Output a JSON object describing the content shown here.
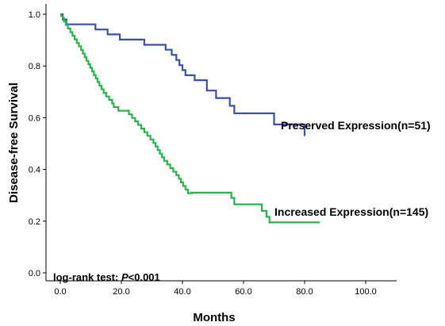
{
  "chart_data": {
    "type": "line",
    "xlabel": "Months",
    "ylabel": "Disease-free Survival",
    "xlim": [
      0,
      100
    ],
    "ylim": [
      0,
      1.0
    ],
    "x_ticks": [
      "0.0",
      "20.0",
      "40.0",
      "60.0",
      "80.0",
      "100.0"
    ],
    "y_ticks": [
      "0.0",
      "0.2",
      "0.4",
      "0.6",
      "0.8",
      "1.0"
    ],
    "grid": false,
    "annotation": {
      "prefix": "log-rank test: ",
      "italic": "P",
      "suffix": "<0.001"
    },
    "series": [
      {
        "name": "Preserved Expression(n=51)",
        "color": "#3c50a6",
        "step": true,
        "x": [
          0,
          0.8,
          2,
          11.5,
          15.5,
          19.5,
          27.5,
          34.5,
          36.5,
          38,
          39,
          40,
          41,
          44,
          48,
          51,
          55.5,
          57,
          70,
          80
        ],
        "y": [
          1.0,
          0.98,
          0.961,
          0.941,
          0.922,
          0.902,
          0.882,
          0.863,
          0.843,
          0.823,
          0.803,
          0.784,
          0.764,
          0.745,
          0.705,
          0.676,
          0.646,
          0.617,
          0.574,
          0.529
        ]
      },
      {
        "name": "Increased Expression(n=145)",
        "color": "#2bb24c",
        "step": true,
        "x": [
          0,
          0.3,
          0.8,
          1.2,
          1.8,
          2.5,
          3.3,
          4.0,
          4.7,
          5.4,
          6.1,
          6.8,
          7.4,
          8.0,
          8.6,
          9.2,
          9.8,
          10.4,
          11.0,
          11.6,
          12.2,
          12.8,
          13.5,
          14.2,
          15.0,
          16.0,
          17.0,
          17.5,
          19.0,
          22.5,
          23.5,
          24.5,
          25.5,
          26.5,
          27.5,
          28.5,
          29.5,
          30.5,
          31.2,
          31.9,
          32.6,
          33.3,
          34.0,
          35.0,
          36.0,
          37.0,
          38.0,
          38.8,
          39.5,
          40.2,
          41.0,
          41.8,
          43.0,
          56.0,
          57.0,
          58.5,
          66.0,
          67.5,
          68.5,
          85.0
        ],
        "y": [
          1.0,
          0.993,
          0.986,
          0.972,
          0.959,
          0.945,
          0.931,
          0.917,
          0.903,
          0.889,
          0.876,
          0.862,
          0.848,
          0.834,
          0.82,
          0.807,
          0.793,
          0.779,
          0.765,
          0.752,
          0.738,
          0.724,
          0.71,
          0.696,
          0.682,
          0.669,
          0.655,
          0.641,
          0.627,
          0.613,
          0.599,
          0.586,
          0.572,
          0.558,
          0.544,
          0.53,
          0.516,
          0.502,
          0.489,
          0.475,
          0.461,
          0.447,
          0.433,
          0.419,
          0.405,
          0.391,
          0.378,
          0.364,
          0.35,
          0.336,
          0.322,
          0.308,
          0.31,
          0.29,
          0.265,
          0.265,
          0.24,
          0.217,
          0.195,
          0.195
        ]
      }
    ]
  }
}
